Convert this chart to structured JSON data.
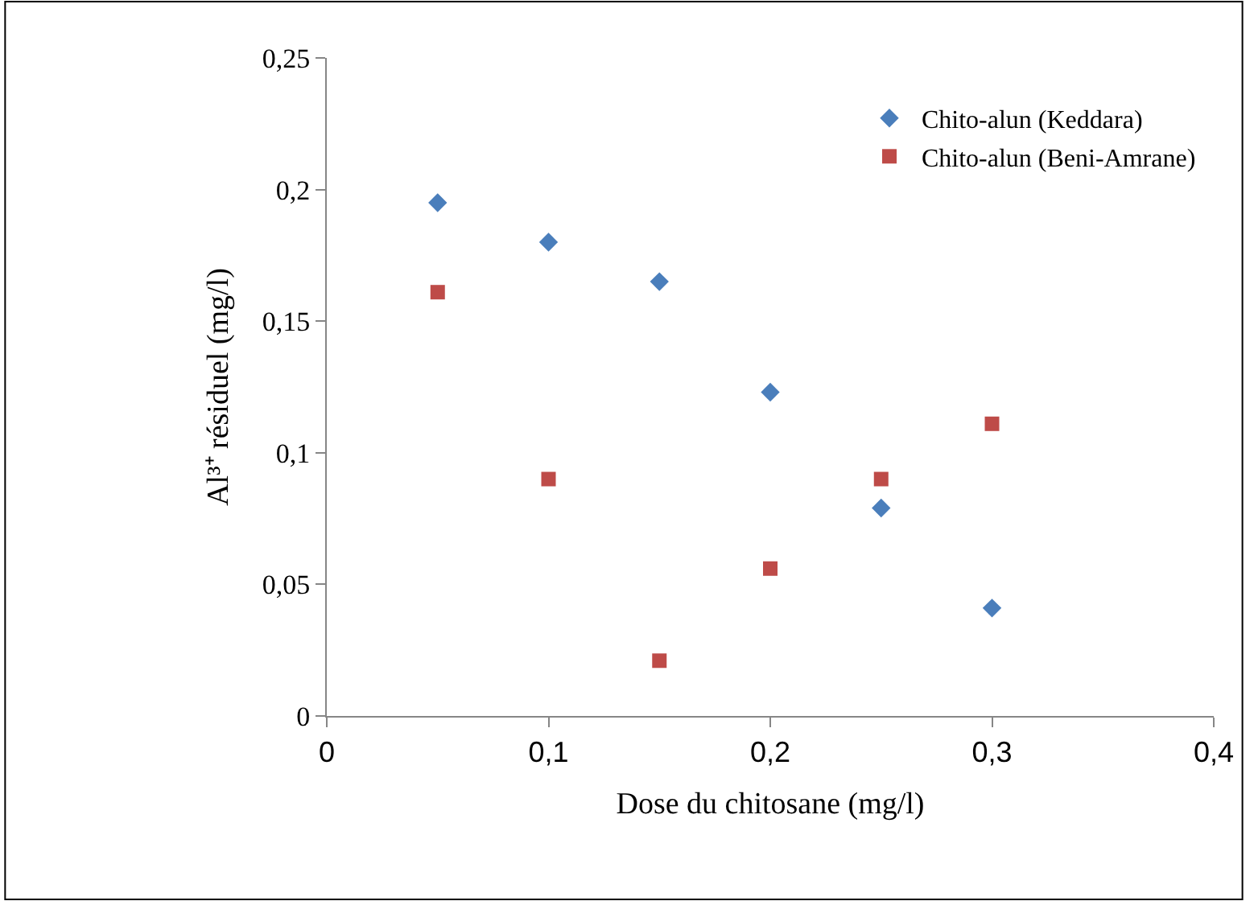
{
  "chart_data": {
    "type": "scatter",
    "xlabel": "Dose du chitosane (mg/l)",
    "ylabel": "Al³⁺ résiduel (mg/l)",
    "x": [
      0.05,
      0.1,
      0.15,
      0.2,
      0.25,
      0.3
    ],
    "series": [
      {
        "name": "Chito-alun (Keddara)",
        "color": "#4a7ebb",
        "marker": "diamond",
        "values": [
          0.195,
          0.18,
          0.165,
          0.123,
          0.079,
          0.041
        ]
      },
      {
        "name": "Chito-alun (Beni-Amrane)",
        "color": "#be4b48",
        "marker": "square",
        "values": [
          0.161,
          0.09,
          0.021,
          0.056,
          0.09,
          0.111
        ]
      }
    ],
    "xlim": [
      0,
      0.4
    ],
    "xticks": [
      0,
      {
        "value": 0.1,
        "label": "0,1"
      },
      {
        "value": 0.2,
        "label": "0,2"
      },
      {
        "value": 0.3,
        "label": "0,3"
      },
      {
        "value": 0.4,
        "label": "0,4"
      }
    ],
    "ylim": [
      0,
      0.25
    ],
    "yticks": [
      0,
      {
        "value": 0.05,
        "label": "0,05"
      },
      {
        "value": 0.1,
        "label": "0,1"
      },
      {
        "value": 0.15,
        "label": "0,15"
      },
      {
        "value": 0.2,
        "label": "0,2"
      },
      {
        "value": 0.25,
        "label": "0,25"
      }
    ],
    "legend": "top right"
  }
}
